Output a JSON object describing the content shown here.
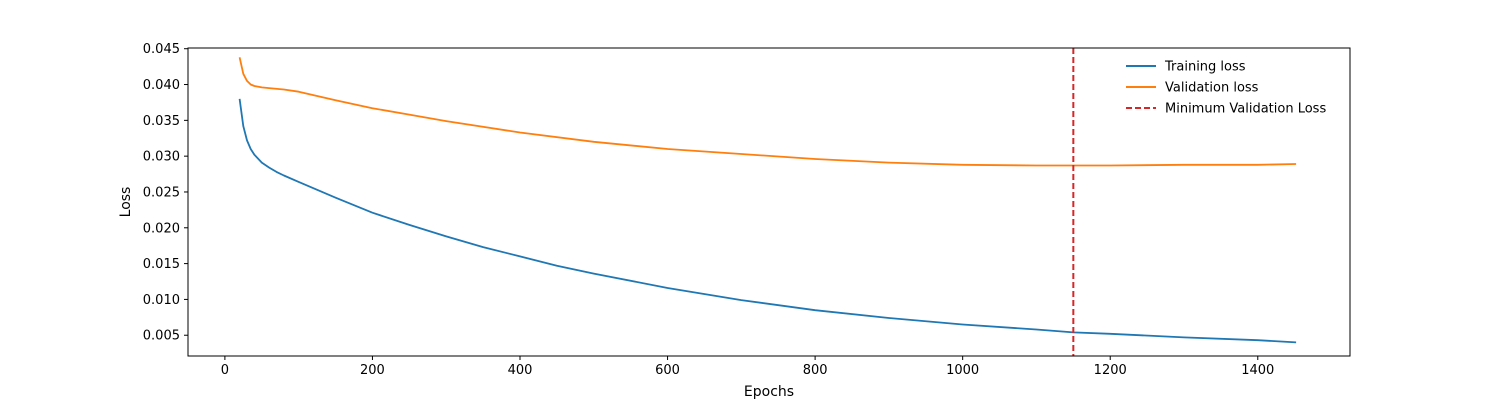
{
  "chart_data": {
    "type": "line",
    "title": "",
    "xlabel": "Epochs",
    "ylabel": "Loss",
    "xlim": [
      -50,
      1525
    ],
    "ylim": [
      0.0021,
      0.0451
    ],
    "xticks": [
      0,
      200,
      400,
      600,
      800,
      1000,
      1200,
      1400
    ],
    "yticks": [
      0.005,
      0.01,
      0.015,
      0.02,
      0.025,
      0.03,
      0.035,
      0.04,
      0.045
    ],
    "ytick_labels": [
      "0.005",
      "0.010",
      "0.015",
      "0.020",
      "0.025",
      "0.030",
      "0.035",
      "0.040",
      "0.045"
    ],
    "grid": false,
    "legend_position": "top-right",
    "series": [
      {
        "name": "Training loss",
        "color": "#1f77b4",
        "style": "solid",
        "x": [
          20,
          25,
          30,
          35,
          40,
          50,
          60,
          70,
          80,
          100,
          150,
          200,
          250,
          300,
          350,
          400,
          450,
          500,
          600,
          700,
          800,
          900,
          1000,
          1100,
          1150,
          1200,
          1300,
          1400,
          1452
        ],
        "y": [
          0.038,
          0.0342,
          0.0322,
          0.031,
          0.0302,
          0.0291,
          0.0284,
          0.0278,
          0.0273,
          0.0264,
          0.0242,
          0.0221,
          0.0204,
          0.0188,
          0.0173,
          0.016,
          0.0147,
          0.0136,
          0.0116,
          0.0099,
          0.0085,
          0.0074,
          0.0065,
          0.0058,
          0.0054,
          0.0052,
          0.0047,
          0.0043,
          0.004
        ]
      },
      {
        "name": "Validation loss",
        "color": "#ff7f0e",
        "style": "solid",
        "x": [
          20,
          25,
          30,
          35,
          40,
          50,
          60,
          80,
          100,
          150,
          200,
          250,
          300,
          400,
          500,
          600,
          700,
          800,
          900,
          1000,
          1100,
          1150,
          1200,
          1300,
          1400,
          1452
        ],
        "y": [
          0.0438,
          0.0415,
          0.0405,
          0.04,
          0.0398,
          0.0396,
          0.0395,
          0.0393,
          0.039,
          0.0378,
          0.0367,
          0.0358,
          0.0349,
          0.0333,
          0.032,
          0.031,
          0.0303,
          0.0296,
          0.0291,
          0.0288,
          0.0287,
          0.0287,
          0.0287,
          0.0288,
          0.0288,
          0.0289
        ]
      }
    ],
    "vline": {
      "name": "Minimum Validation Loss",
      "x": 1150,
      "color": "#d62728",
      "style": "dashed"
    }
  }
}
